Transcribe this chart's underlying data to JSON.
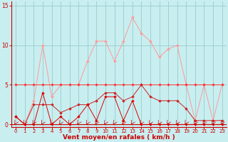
{
  "title": "",
  "xlabel": "Vent moyen/en rafales ( km/h )",
  "ylabel": "",
  "xlim": [
    -0.5,
    23.5
  ],
  "ylim": [
    -0.3,
    15.5
  ],
  "yticks": [
    0,
    5,
    10,
    15
  ],
  "xticks": [
    0,
    1,
    2,
    3,
    4,
    5,
    6,
    7,
    8,
    9,
    10,
    11,
    12,
    13,
    14,
    15,
    16,
    17,
    18,
    19,
    20,
    21,
    22,
    23
  ],
  "bg_color": "#c8eef0",
  "grid_color": "#99cccc",
  "line1_x": [
    0,
    1,
    2,
    3,
    4,
    5,
    6,
    7,
    8,
    9,
    10,
    11,
    12,
    13,
    14,
    15,
    16,
    17,
    18,
    19,
    20,
    21,
    22,
    23
  ],
  "line1_y": [
    1.0,
    0.0,
    3.0,
    10.0,
    3.5,
    5.0,
    5.0,
    5.0,
    8.0,
    10.5,
    10.5,
    8.0,
    10.5,
    13.5,
    11.5,
    10.5,
    8.5,
    9.5,
    10.0,
    5.0,
    0.5,
    5.0,
    0.5,
    5.0
  ],
  "line1_color": "#ff9999",
  "line2_x": [
    0,
    1,
    2,
    3,
    4,
    5,
    6,
    7,
    8,
    9,
    10,
    11,
    12,
    13,
    14,
    15,
    16,
    17,
    18,
    19,
    20,
    21,
    22,
    23
  ],
  "line2_y": [
    5.0,
    5.0,
    5.0,
    5.0,
    5.0,
    5.0,
    5.0,
    5.0,
    5.0,
    5.0,
    5.0,
    5.0,
    5.0,
    5.0,
    5.0,
    5.0,
    5.0,
    5.0,
    5.0,
    5.0,
    5.0,
    5.0,
    5.0,
    5.0
  ],
  "line2_color": "#ff3333",
  "line3_x": [
    0,
    1,
    2,
    3,
    4,
    5,
    6,
    7,
    8,
    9,
    10,
    11,
    12,
    13,
    14,
    15,
    16,
    17,
    18,
    19,
    20,
    21,
    22,
    23
  ],
  "line3_y": [
    1.0,
    0.0,
    2.5,
    2.5,
    2.5,
    1.5,
    2.0,
    2.5,
    2.5,
    3.0,
    4.0,
    4.0,
    3.0,
    3.5,
    5.0,
    3.5,
    3.0,
    3.0,
    3.0,
    2.0,
    0.5,
    0.5,
    0.5,
    0.5
  ],
  "line3_color": "#cc2222",
  "line4_x": [
    0,
    1,
    2,
    3,
    4,
    5,
    6,
    7,
    8,
    9,
    10,
    11,
    12,
    13,
    14,
    15,
    16,
    17,
    18,
    19,
    20,
    21,
    22,
    23
  ],
  "line4_y": [
    1.0,
    0.0,
    0.0,
    4.0,
    0.0,
    1.0,
    0.0,
    1.0,
    2.5,
    0.5,
    3.5,
    3.5,
    0.5,
    3.0,
    0.0,
    0.0,
    0.0,
    0.0,
    0.0,
    0.0,
    0.0,
    0.0,
    0.0,
    0.0
  ],
  "line4_color": "#dd0000",
  "marker_size": 2.0,
  "linewidth": 0.7,
  "xlabel_color": "#cc0000",
  "tick_color": "#cc0000",
  "axis_color": "#cc0000",
  "arrow_color": "#cc0000"
}
